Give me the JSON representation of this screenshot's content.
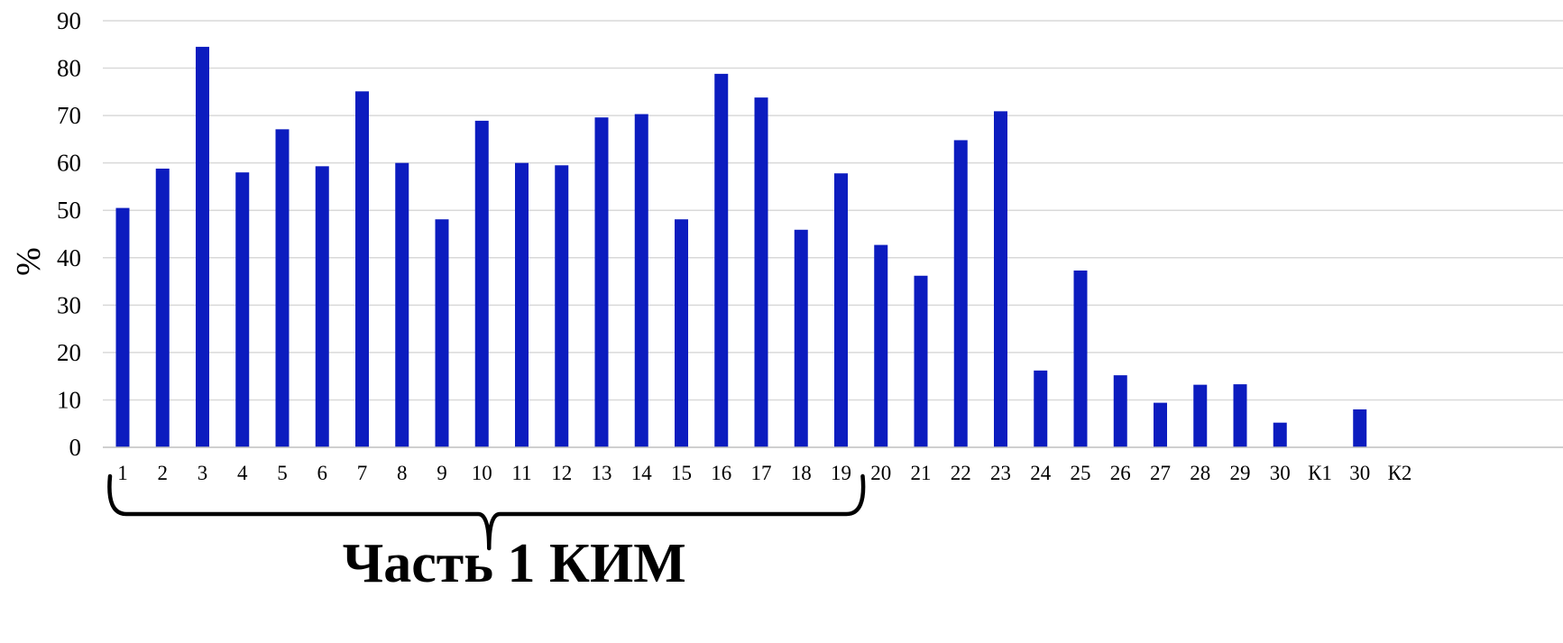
{
  "chart_data": {
    "type": "bar",
    "ylabel": "%",
    "ylim": [
      0,
      90
    ],
    "yticks": [
      0,
      10,
      20,
      30,
      40,
      50,
      60,
      70,
      80,
      90
    ],
    "grid": true,
    "categories": [
      "1",
      "2",
      "3",
      "4",
      "5",
      "6",
      "7",
      "8",
      "9",
      "10",
      "11",
      "12",
      "13",
      "14",
      "15",
      "16",
      "17",
      "18",
      "19",
      "20",
      "21",
      "22",
      "23",
      "24",
      "25",
      "26",
      "27",
      "28",
      "29",
      "30",
      "К1",
      "30",
      "К2"
    ],
    "values": [
      50.5,
      58.8,
      84.5,
      58.0,
      67.1,
      59.3,
      75.1,
      60.0,
      48.1,
      68.9,
      60.0,
      59.5,
      69.6,
      70.3,
      48.1,
      78.8,
      73.8,
      45.9,
      57.8,
      42.7,
      36.2,
      64.8,
      70.9,
      16.2,
      37.3,
      15.2,
      9.4,
      13.2,
      13.3,
      5.2,
      null,
      8.0,
      null
    ],
    "bar_color": "#0c1cbf",
    "annotation": {
      "text": "Часть 1 КИМ",
      "bracket_from_category": 0,
      "bracket_to_category": 18
    }
  }
}
